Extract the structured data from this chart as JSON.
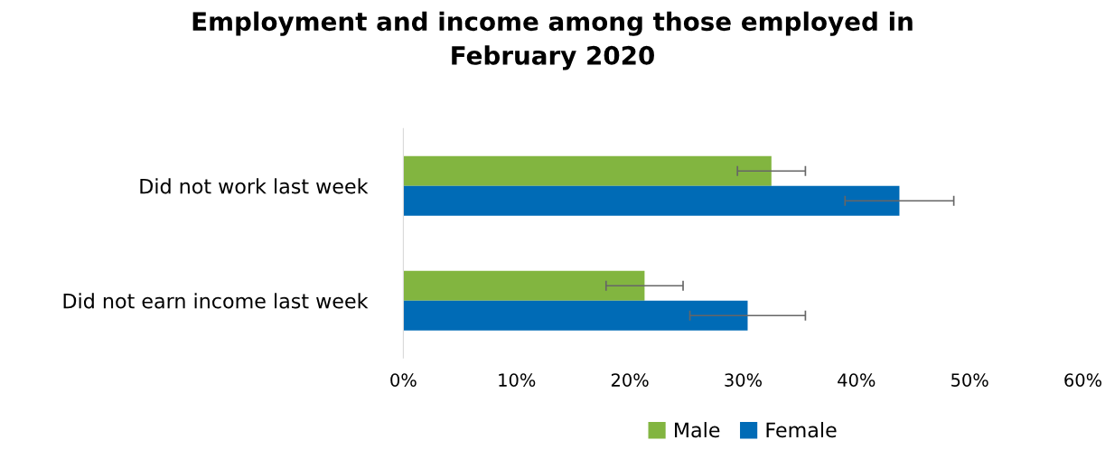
{
  "chart_data": {
    "type": "bar",
    "orientation": "horizontal",
    "title": "Employment and income among those employed in\nFebruary 2020",
    "categories": [
      "Did not work last week",
      "Did not earn income last week"
    ],
    "series": [
      {
        "name": "Male",
        "color": "#82b540",
        "values": [
          32.5,
          21.3
        ],
        "errors": [
          3.0,
          3.4
        ]
      },
      {
        "name": "Female",
        "color": "#006bb6",
        "values": [
          43.8,
          30.4
        ],
        "errors": [
          4.8,
          5.1
        ]
      }
    ],
    "xlim": [
      0,
      60
    ],
    "xticks": [
      {
        "value": 0,
        "label": "0%"
      },
      {
        "value": 10,
        "label": "10%"
      },
      {
        "value": 20,
        "label": "20%"
      },
      {
        "value": 30,
        "label": "30%"
      },
      {
        "value": 40,
        "label": "40%"
      },
      {
        "value": 50,
        "label": "50%"
      },
      {
        "value": 60,
        "label": "60%"
      }
    ],
    "grid": false,
    "legend": "bottom"
  }
}
